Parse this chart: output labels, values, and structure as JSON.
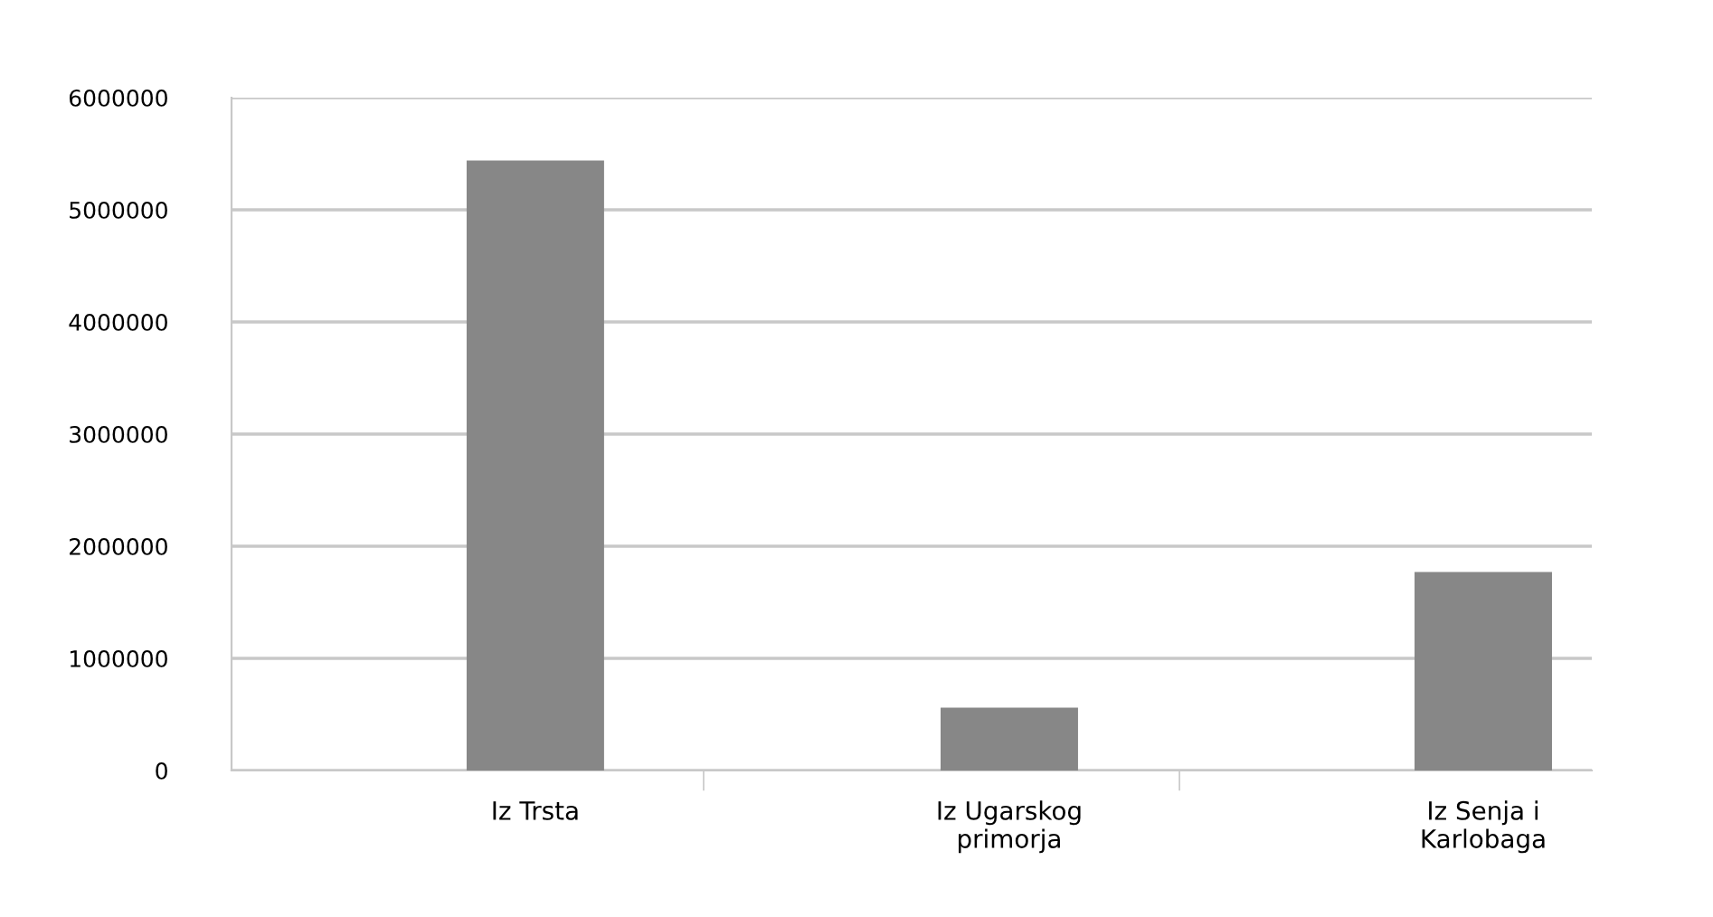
{
  "chart_data": {
    "type": "bar",
    "categories": [
      "Iz Trsta",
      "Iz Ugarskog\nprimorja",
      "Iz Senja i\nKarlobaga"
    ],
    "values": [
      5440000,
      560000,
      1770000
    ],
    "color": "#878787",
    "ylim": [
      0,
      6000000
    ],
    "yticks": [
      0,
      1000000,
      2000000,
      3000000,
      4000000,
      5000000,
      6000000
    ],
    "grid": "y"
  }
}
